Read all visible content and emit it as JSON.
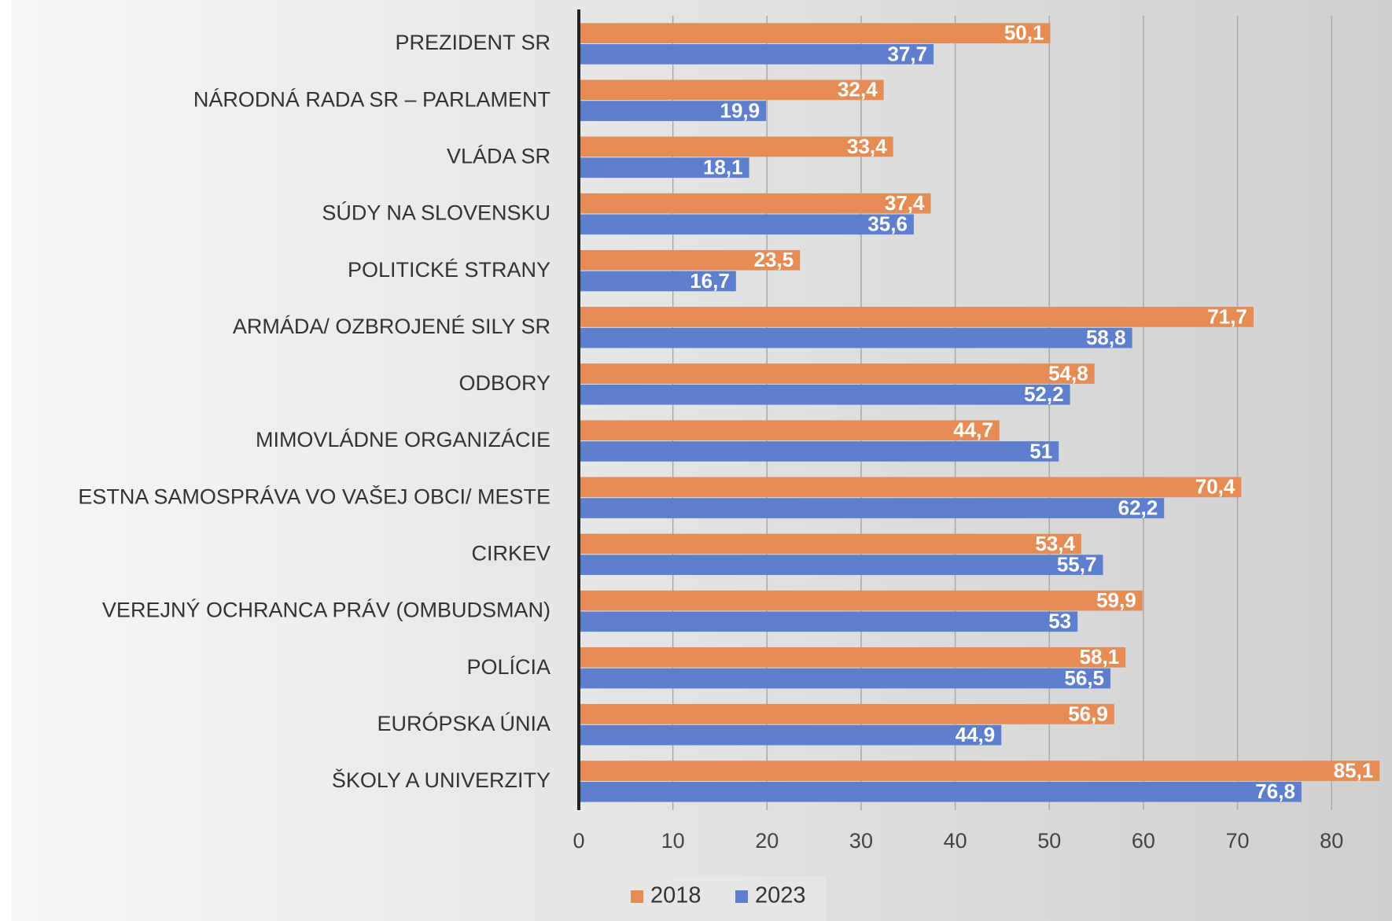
{
  "chart_data": {
    "type": "bar",
    "orientation": "horizontal",
    "categories": [
      "PREZIDENT SR",
      "NÁRODNÁ RADA SR – PARLAMENT",
      "VLÁDA SR",
      "SÚDY NA SLOVENSKU",
      "POLITICKÉ STRANY",
      "ARMÁDA/ OZBROJENÉ SILY SR",
      "ODBORY",
      "MIMOVLÁDNE ORGANIZÁCIE",
      "ESTNA SAMOSPRÁVA VO VAŠEJ OBCI/ MESTE",
      "CIRKEV",
      "VEREJNÝ OCHRANCA PRÁV (OMBUDSMAN)",
      "POLÍCIA",
      "EURÓPSKA ÚNIA",
      "ŠKOLY A UNIVERZITY"
    ],
    "series": [
      {
        "name": "2018",
        "color": "#e48c53",
        "values": [
          50.1,
          32.4,
          33.4,
          37.4,
          23.5,
          71.7,
          54.8,
          44.7,
          70.4,
          53.4,
          59.9,
          58.1,
          56.9,
          85.1
        ],
        "value_labels": [
          "50,1",
          "32,4",
          "33,4",
          "37,4",
          "23,5",
          "71,7",
          "54,8",
          "44,7",
          "70,4",
          "53,4",
          "59,9",
          "58,1",
          "56,9",
          "85,1"
        ]
      },
      {
        "name": "2023",
        "color": "#5e7fce",
        "values": [
          37.7,
          19.9,
          18.1,
          35.6,
          16.7,
          58.8,
          52.2,
          51,
          62.2,
          55.7,
          53,
          56.5,
          44.9,
          76.8
        ],
        "value_labels": [
          "37,7",
          "19,9",
          "18,1",
          "35,6",
          "16,7",
          "58,8",
          "52,2",
          "51",
          "62,2",
          "55,7",
          "53",
          "56,5",
          "44,9",
          "76,8"
        ]
      }
    ],
    "xlim": [
      0,
      86
    ],
    "xticks": [
      0,
      10,
      20,
      30,
      40,
      50,
      60,
      70,
      80
    ],
    "grid": true,
    "legend": "bottom"
  }
}
